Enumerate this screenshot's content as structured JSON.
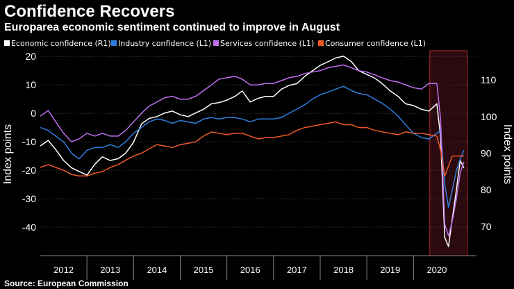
{
  "chart_data": {
    "type": "line",
    "title": "Confidence Recovers",
    "subtitle": "Europarea economic sentiment continued to improve in August",
    "source": "Source: European Commission",
    "ylabel_left": "Index points",
    "ylabel_right": "Index points",
    "ylim_left": [
      -50,
      22
    ],
    "yticks_left": [
      20,
      10,
      0,
      -10,
      -20,
      -30,
      -40
    ],
    "ylim_right": [
      62,
      118
    ],
    "yticks_right": [
      110,
      100,
      90,
      80,
      70
    ],
    "x_range": [
      2011.5,
      2020.85
    ],
    "x_labels": [
      "2012",
      "2013",
      "2014",
      "2015",
      "2016",
      "2017",
      "2018",
      "2019",
      "2020"
    ],
    "x_label_centers": [
      2012,
      2013,
      2014,
      2015,
      2016,
      2017,
      2018,
      2019,
      2020
    ],
    "x_dividers": [
      2012.5,
      2013.5,
      2014.5,
      2015.5,
      2016.5,
      2017.5,
      2018.5,
      2019.5
    ],
    "highlight": {
      "from": 2019.85,
      "to": 2020.65,
      "color": "#2a0a0e",
      "border": "#b03030"
    },
    "series": [
      {
        "name": "Economic confidence (R1)",
        "color": "#ffffff",
        "axis": "right",
        "x": [
          2011.5,
          2011.67,
          2011.83,
          2012.0,
          2012.17,
          2012.33,
          2012.5,
          2012.67,
          2012.83,
          2013.0,
          2013.17,
          2013.33,
          2013.5,
          2013.67,
          2013.83,
          2014.0,
          2014.17,
          2014.33,
          2014.5,
          2014.67,
          2014.83,
          2015.0,
          2015.17,
          2015.33,
          2015.5,
          2015.67,
          2015.83,
          2016.0,
          2016.17,
          2016.33,
          2016.5,
          2016.67,
          2016.83,
          2017.0,
          2017.17,
          2017.33,
          2017.5,
          2017.67,
          2017.83,
          2018.0,
          2018.17,
          2018.33,
          2018.5,
          2018.67,
          2018.83,
          2019.0,
          2019.17,
          2019.33,
          2019.5,
          2019.67,
          2019.83,
          2020.0,
          2020.08,
          2020.17,
          2020.25,
          2020.33,
          2020.42,
          2020.5,
          2020.58
        ],
        "values": [
          92,
          93.5,
          91,
          88,
          86,
          85,
          84,
          87,
          89,
          88,
          88.5,
          90,
          93,
          98,
          99.5,
          100,
          101,
          101.5,
          100.5,
          100,
          101,
          102,
          103.5,
          103.8,
          104.5,
          105.5,
          107,
          104,
          105,
          105.5,
          105.5,
          107.5,
          108.5,
          109,
          111,
          112.5,
          114,
          115,
          116,
          116.5,
          115,
          112.5,
          111.5,
          110.5,
          109,
          107,
          105.5,
          103.5,
          103,
          102,
          101.5,
          103.5,
          94.5,
          67,
          64.5,
          72,
          80,
          88,
          86
        ]
      },
      {
        "name": "Industry confidence (L1)",
        "color": "#2f7fe0",
        "axis": "left",
        "x": [
          2011.5,
          2011.67,
          2011.83,
          2012.0,
          2012.17,
          2012.33,
          2012.5,
          2012.67,
          2012.83,
          2013.0,
          2013.17,
          2013.33,
          2013.5,
          2013.67,
          2013.83,
          2014.0,
          2014.17,
          2014.33,
          2014.5,
          2014.67,
          2014.83,
          2015.0,
          2015.17,
          2015.33,
          2015.5,
          2015.67,
          2015.83,
          2016.0,
          2016.17,
          2016.33,
          2016.5,
          2016.67,
          2016.83,
          2017.0,
          2017.17,
          2017.33,
          2017.5,
          2017.67,
          2017.83,
          2018.0,
          2018.17,
          2018.33,
          2018.5,
          2018.67,
          2018.83,
          2019.0,
          2019.17,
          2019.33,
          2019.5,
          2019.67,
          2019.83,
          2020.0,
          2020.08,
          2020.17,
          2020.25,
          2020.33,
          2020.42,
          2020.5,
          2020.58
        ],
        "values": [
          -5,
          -6,
          -8,
          -10,
          -14,
          -16,
          -13,
          -12,
          -12,
          -11,
          -12,
          -10,
          -7,
          -5,
          -3,
          -2,
          -2.5,
          -3.5,
          -2.5,
          -3,
          -3.5,
          -2,
          -1.5,
          -2,
          -1.5,
          -1.5,
          -2,
          -3,
          -2,
          -2,
          -2,
          -1.5,
          0,
          1.5,
          3,
          5,
          6.5,
          7.5,
          8.5,
          9.5,
          8,
          7,
          6.5,
          5,
          3.5,
          1.5,
          -1,
          -4,
          -7,
          -8.5,
          -9,
          -7,
          -6,
          -25,
          -33,
          -27,
          -20,
          -16,
          -13
        ]
      },
      {
        "name": "Services confidence  (L1)",
        "color": "#c070f0",
        "axis": "left",
        "x": [
          2011.5,
          2011.67,
          2011.83,
          2012.0,
          2012.17,
          2012.33,
          2012.5,
          2012.67,
          2012.83,
          2013.0,
          2013.17,
          2013.33,
          2013.5,
          2013.67,
          2013.83,
          2014.0,
          2014.17,
          2014.33,
          2014.5,
          2014.67,
          2014.83,
          2015.0,
          2015.17,
          2015.33,
          2015.5,
          2015.67,
          2015.83,
          2016.0,
          2016.17,
          2016.33,
          2016.5,
          2016.67,
          2016.83,
          2017.0,
          2017.17,
          2017.33,
          2017.5,
          2017.67,
          2017.83,
          2018.0,
          2018.17,
          2018.33,
          2018.5,
          2018.67,
          2018.83,
          2019.0,
          2019.17,
          2019.33,
          2019.5,
          2019.67,
          2019.83,
          2020.0,
          2020.08,
          2020.17,
          2020.25,
          2020.33,
          2020.42,
          2020.5,
          2020.58
        ],
        "values": [
          -1,
          1,
          -3,
          -7,
          -10,
          -9,
          -7,
          -8,
          -7,
          -8,
          -8,
          -6,
          -3,
          0,
          2.5,
          4,
          5.5,
          6,
          5,
          5,
          6,
          8,
          10,
          12,
          12.5,
          13,
          12,
          10,
          10,
          10.5,
          10.5,
          11.5,
          12.5,
          13,
          14,
          14.5,
          15,
          16,
          16.5,
          17,
          16,
          15,
          14.5,
          13.5,
          12.5,
          11.5,
          11,
          10,
          9,
          8.5,
          10.5,
          10.5,
          -2,
          -39,
          -43,
          -38,
          -30,
          -21,
          -17
        ]
      },
      {
        "name": "Consumer confidence  (L1)",
        "color": "#f05a28",
        "axis": "left",
        "x": [
          2011.5,
          2011.67,
          2011.83,
          2012.0,
          2012.17,
          2012.33,
          2012.5,
          2012.67,
          2012.83,
          2013.0,
          2013.17,
          2013.33,
          2013.5,
          2013.67,
          2013.83,
          2014.0,
          2014.17,
          2014.33,
          2014.5,
          2014.67,
          2014.83,
          2015.0,
          2015.17,
          2015.33,
          2015.5,
          2015.67,
          2015.83,
          2016.0,
          2016.17,
          2016.33,
          2016.5,
          2016.67,
          2016.83,
          2017.0,
          2017.17,
          2017.33,
          2017.5,
          2017.67,
          2017.83,
          2018.0,
          2018.17,
          2018.33,
          2018.5,
          2018.67,
          2018.83,
          2019.0,
          2019.17,
          2019.33,
          2019.5,
          2019.67,
          2019.83,
          2020.0,
          2020.08,
          2020.17,
          2020.25,
          2020.33,
          2020.42,
          2020.5,
          2020.58
        ],
        "values": [
          -19,
          -18,
          -19,
          -20,
          -21.5,
          -22,
          -22,
          -21,
          -20.5,
          -19,
          -18,
          -16.5,
          -15,
          -14,
          -12.5,
          -11,
          -11.5,
          -12,
          -11,
          -10.5,
          -10,
          -8,
          -6.5,
          -7,
          -7.5,
          -7,
          -7,
          -8,
          -9,
          -8.5,
          -8.5,
          -8,
          -7.5,
          -6,
          -5,
          -4.5,
          -4,
          -3.5,
          -3,
          -4,
          -4,
          -5,
          -5,
          -6,
          -6.5,
          -7,
          -7.5,
          -6.5,
          -7,
          -7,
          -7.5,
          -8,
          -13,
          -22,
          -18.5,
          -15,
          -15,
          -15,
          -15
        ]
      }
    ]
  }
}
